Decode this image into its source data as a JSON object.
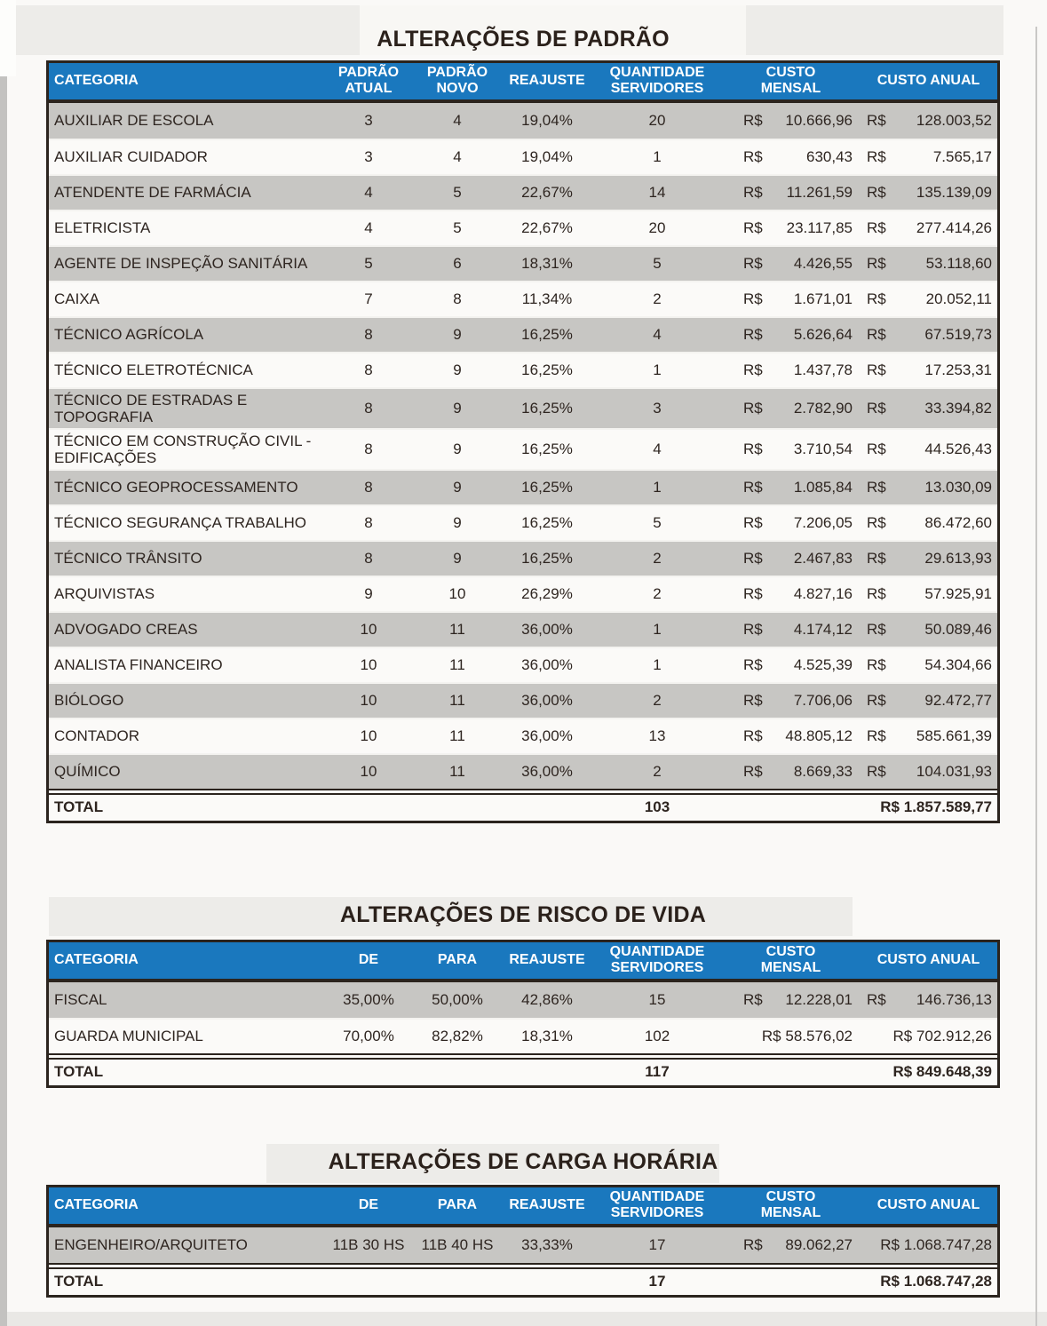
{
  "colors": {
    "header_blue": "#1A78BE",
    "row_gray": "#C7C6C3",
    "border_dark": "#2B241E",
    "header_text": "#FFFFFF",
    "body_text": "#2E2520"
  },
  "tables": [
    {
      "title": "ALTERAÇÕES DE PADRÃO",
      "headers": [
        "CATEGORIA",
        "PADRÃO\nATUAL",
        "PADRÃO\nNOVO",
        "REAJUSTE",
        "QUANTIDADE\nSERVIDORES",
        "CUSTO\nMENSAL",
        "CUSTO ANUAL"
      ],
      "rows": [
        [
          "AUXILIAR DE ESCOLA",
          "3",
          "4",
          "19,04%",
          "20",
          [
            "R$",
            "10.666,96"
          ],
          [
            "R$",
            "128.003,52"
          ]
        ],
        [
          "AUXILIAR CUIDADOR",
          "3",
          "4",
          "19,04%",
          "1",
          [
            "R$",
            "630,43"
          ],
          [
            "R$",
            "7.565,17"
          ]
        ],
        [
          "ATENDENTE DE FARMÁCIA",
          "4",
          "5",
          "22,67%",
          "14",
          [
            "R$",
            "11.261,59"
          ],
          [
            "R$",
            "135.139,09"
          ]
        ],
        [
          "ELETRICISTA",
          "4",
          "5",
          "22,67%",
          "20",
          [
            "R$",
            "23.117,85"
          ],
          [
            "R$",
            "277.414,26"
          ]
        ],
        [
          "AGENTE DE INSPEÇÃO SANITÁRIA",
          "5",
          "6",
          "18,31%",
          "5",
          [
            "R$",
            "4.426,55"
          ],
          [
            "R$",
            "53.118,60"
          ]
        ],
        [
          "CAIXA",
          "7",
          "8",
          "11,34%",
          "2",
          [
            "R$",
            "1.671,01"
          ],
          [
            "R$",
            "20.052,11"
          ]
        ],
        [
          "TÉCNICO AGRÍCOLA",
          "8",
          "9",
          "16,25%",
          "4",
          [
            "R$",
            "5.626,64"
          ],
          [
            "R$",
            "67.519,73"
          ]
        ],
        [
          "TÉCNICO ELETROTÉCNICA",
          "8",
          "9",
          "16,25%",
          "1",
          [
            "R$",
            "1.437,78"
          ],
          [
            "R$",
            "17.253,31"
          ]
        ],
        [
          "TÉCNICO DE ESTRADAS E TOPOGRAFIA",
          "8",
          "9",
          "16,25%",
          "3",
          [
            "R$",
            "2.782,90"
          ],
          [
            "R$",
            "33.394,82"
          ]
        ],
        [
          "TÉCNICO EM CONSTRUÇÃO CIVIL - EDIFICAÇÕES",
          "8",
          "9",
          "16,25%",
          "4",
          [
            "R$",
            "3.710,54"
          ],
          [
            "R$",
            "44.526,43"
          ]
        ],
        [
          "TÉCNICO GEOPROCESSAMENTO",
          "8",
          "9",
          "16,25%",
          "1",
          [
            "R$",
            "1.085,84"
          ],
          [
            "R$",
            "13.030,09"
          ]
        ],
        [
          "TÉCNICO SEGURANÇA TRABALHO",
          "8",
          "9",
          "16,25%",
          "5",
          [
            "R$",
            "7.206,05"
          ],
          [
            "R$",
            "86.472,60"
          ]
        ],
        [
          "TÉCNICO TRÂNSITO",
          "8",
          "9",
          "16,25%",
          "2",
          [
            "R$",
            "2.467,83"
          ],
          [
            "R$",
            "29.613,93"
          ]
        ],
        [
          "ARQUIVISTAS",
          "9",
          "10",
          "26,29%",
          "2",
          [
            "R$",
            "4.827,16"
          ],
          [
            "R$",
            "57.925,91"
          ]
        ],
        [
          "ADVOGADO CREAS",
          "10",
          "11",
          "36,00%",
          "1",
          [
            "R$",
            "4.174,12"
          ],
          [
            "R$",
            "50.089,46"
          ]
        ],
        [
          "ANALISTA FINANCEIRO",
          "10",
          "11",
          "36,00%",
          "1",
          [
            "R$",
            "4.525,39"
          ],
          [
            "R$",
            "54.304,66"
          ]
        ],
        [
          "BIÓLOGO",
          "10",
          "11",
          "36,00%",
          "2",
          [
            "R$",
            "7.706,06"
          ],
          [
            "R$",
            "92.472,77"
          ]
        ],
        [
          "CONTADOR",
          "10",
          "11",
          "36,00%",
          "13",
          [
            "R$",
            "48.805,12"
          ],
          [
            "R$",
            "585.661,39"
          ]
        ],
        [
          "QUÍMICO",
          "10",
          "11",
          "36,00%",
          "2",
          [
            "R$",
            "8.669,33"
          ],
          [
            "R$",
            "104.031,93"
          ]
        ]
      ],
      "total": {
        "label": "TOTAL",
        "quantidade": "103",
        "custo_anual": "R$ 1.857.589,77"
      }
    },
    {
      "title": "ALTERAÇÕES DE RISCO DE VIDA",
      "headers": [
        "CATEGORIA",
        "DE",
        "PARA",
        "REAJUSTE",
        "QUANTIDADE\nSERVIDORES",
        "CUSTO\nMENSAL",
        "CUSTO ANUAL"
      ],
      "rows": [
        [
          "FISCAL",
          "35,00%",
          "50,00%",
          "42,86%",
          "15",
          [
            "R$",
            "12.228,01"
          ],
          [
            "R$",
            "146.736,13"
          ]
        ],
        [
          "GUARDA MUNICIPAL",
          "70,00%",
          "82,82%",
          "18,31%",
          "102",
          "R$ 58.576,02",
          "R$ 702.912,26"
        ]
      ],
      "total": {
        "label": "TOTAL",
        "quantidade": "117",
        "custo_anual": "R$ 849.648,39"
      }
    },
    {
      "title": "ALTERAÇÕES DE CARGA HORÁRIA",
      "headers": [
        "CATEGORIA",
        "DE",
        "PARA",
        "REAJUSTE",
        "QUANTIDADE\nSERVIDORES",
        "CUSTO\nMENSAL",
        "CUSTO ANUAL"
      ],
      "rows": [
        [
          "ENGENHEIRO/ARQUITETO",
          "11B 30 HS",
          "11B 40 HS",
          "33,33%",
          "17",
          [
            "R$",
            "89.062,27"
          ],
          "R$ 1.068.747,28"
        ]
      ],
      "total": {
        "label": "TOTAL",
        "quantidade": "17",
        "custo_anual": "R$ 1.068.747,28"
      }
    }
  ]
}
